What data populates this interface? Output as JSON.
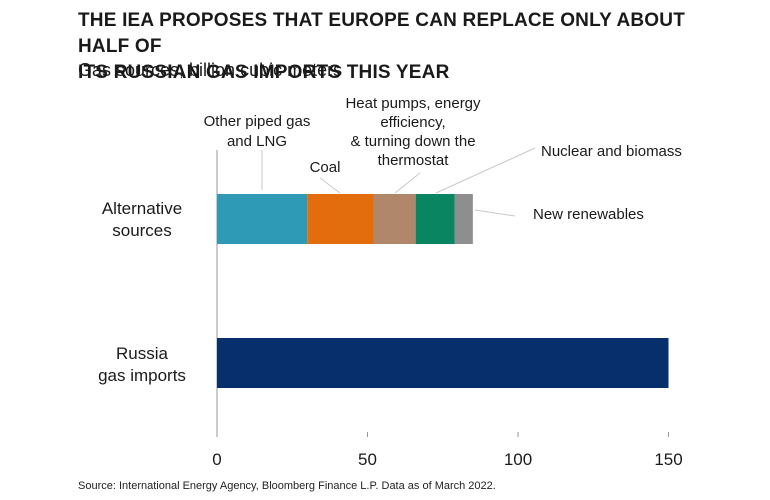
{
  "title_line1": "THE IEA PROPOSES THAT EUROPE CAN REPLACE ONLY ABOUT HALF OF",
  "title_line2": "ITS RUSSIAN GAS IMPORTS THIS YEAR",
  "subtitle": "Gas sources, billion cubic meters",
  "source": "Source: International Energy Agency, Bloomberg Finance L.P. Data as of March 2022.",
  "chart_data": {
    "type": "bar",
    "orientation": "horizontal",
    "stacked": true,
    "title": "THE IEA PROPOSES THAT EUROPE CAN REPLACE ONLY ABOUT HALF OF ITS RUSSIAN GAS IMPORTS THIS YEAR",
    "subtitle": "Gas sources, billion cubic meters",
    "categories": [
      [
        "Alternative",
        "sources"
      ],
      [
        "Russia",
        "gas imports"
      ]
    ],
    "xlim": [
      0,
      150
    ],
    "xticks": [
      0,
      50,
      100,
      150
    ],
    "grid": false,
    "series": [
      {
        "name": [
          "Other piped gas",
          "and LNG"
        ],
        "color": "#2E9AB5",
        "values": [
          30,
          0
        ]
      },
      {
        "name": [
          "Coal"
        ],
        "color": "#E36D0C",
        "values": [
          22,
          0
        ]
      },
      {
        "name": [
          "Heat pumps, energy",
          "efficiency,",
          "& turning down the",
          "thermostat"
        ],
        "color": "#B0876A",
        "values": [
          14,
          0
        ]
      },
      {
        "name": [
          "Nuclear and biomass"
        ],
        "color": "#0A8562",
        "values": [
          13,
          0
        ]
      },
      {
        "name": [
          "New renewables"
        ],
        "color": "#8E8E8E",
        "values": [
          6,
          0
        ]
      },
      {
        "name": [
          "Russia gas imports"
        ],
        "color": "#072F6B",
        "values": [
          0,
          150
        ],
        "unlabeled": true
      }
    ]
  }
}
